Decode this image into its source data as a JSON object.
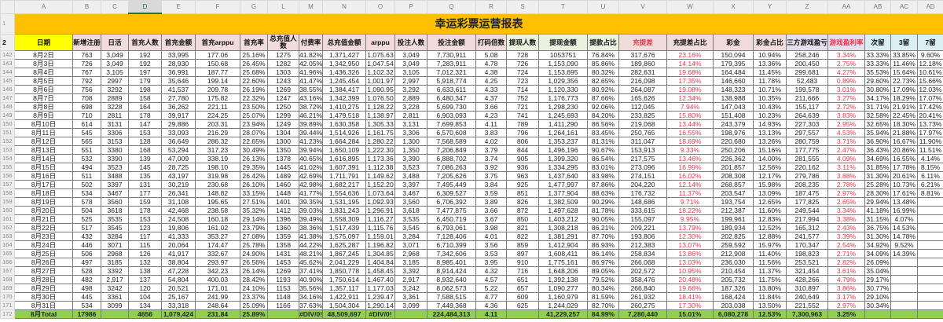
{
  "sheet": {
    "column_letters": [
      "A",
      "B",
      "C",
      "D",
      "E",
      "F",
      "G",
      "L",
      "M",
      "N",
      "O",
      "P",
      "Q",
      "R",
      "S",
      "T",
      "U",
      "V",
      "W",
      "X",
      "Y",
      "Z",
      "AA",
      "AB",
      "AC",
      "AD"
    ],
    "selected_column": "D",
    "title": "幸运彩票运营报表",
    "title_row_number": "1",
    "header_row_number": "2",
    "headers": [
      "日期",
      "新增注册",
      "日活",
      "首充人数",
      "首充金额",
      "首充arppu",
      "首充率",
      "总充值人数",
      "付费率",
      "总充值金额",
      "arppu",
      "投注人数",
      "投注金额",
      "打码倍数",
      "提现人数",
      "提现金额",
      "提款占比",
      "充提差",
      "充提差占比",
      "彩金",
      "彩金占比",
      "三方游戏盈亏",
      "游戏盈利率",
      "次留",
      "3留",
      "7留"
    ],
    "header_styles": [
      "date",
      "pink",
      "pink",
      "pink",
      "pink",
      "pink",
      "pink",
      "pink",
      "pink",
      "pink",
      "pink",
      "pink",
      "pink",
      "pink",
      "green",
      "green",
      "green",
      "pink-red",
      "pink",
      "pink",
      "pink",
      "lav",
      "lav-red",
      "blue",
      "blue",
      "blue"
    ],
    "red_value_columns": [
      18,
      22
    ],
    "colors": {
      "title_bg": "#FFC000",
      "date_header_bg": "#FFFF00",
      "total_row_bg": "#92D050",
      "negative_red": "#e8344a"
    },
    "rows": [
      {
        "n": "142",
        "cells": [
          "8月2日",
          "763",
          "3,049",
          "192",
          "33,995",
          "177.06",
          "25.16%",
          "1275",
          "41.82%",
          "1,371,427",
          "1,075.63",
          "3,049",
          "7,730,911",
          "5.08",
          "728",
          "1053751",
          "76.84%",
          "317,676",
          "23.16%",
          "150,094",
          "10.94%",
          "258,246",
          "3.34%",
          "33.33%",
          "33.85%",
          "9.60%"
        ]
      },
      {
        "n": "143",
        "cells": [
          "8月3日",
          "726",
          "3,049",
          "192",
          "28,930",
          "150.68",
          "26.45%",
          "1282",
          "42.05%",
          "1,342,950",
          "1,047.54",
          "3,049",
          "7,283,911",
          "4.78",
          "726",
          "1,153,090",
          "85.86%",
          "189,860",
          "14.14%",
          "179,395",
          "13.36%",
          "200,450",
          "2.75%",
          "33.33%",
          "11.46%",
          "12.18%"
        ]
      },
      {
        "n": "144",
        "cells": [
          "8月4日",
          "767",
          "3,105",
          "197",
          "36,991",
          "187.77",
          "25.68%",
          "1303",
          "41.96%",
          "1,436,326",
          "1,102.32",
          "3,105",
          "7,012,321",
          "4.38",
          "724",
          "1,153,695",
          "80.32%",
          "282,631",
          "19.68%",
          "164,484",
          "11.45%",
          "299,681",
          "4.27%",
          "35.53%",
          "15.64%",
          "10.61%"
        ]
      },
      {
        "n": "145",
        "cells": [
          "8月5日",
          "792",
          "2997",
          "179",
          "35,646",
          "199.14",
          "22.60%",
          "1243",
          "41.47%",
          "1,245,454",
          "1,001.97",
          "2,997",
          "5,918,774",
          "4.25",
          "723",
          "1,029,356",
          "82.65%",
          "216,098",
          "17.35%",
          "146,660",
          "11.78%",
          "52,483",
          "0.89%",
          "29.60%",
          "22.73%",
          "15.66%"
        ]
      },
      {
        "n": "146",
        "cells": [
          "8月6日",
          "756",
          "3292",
          "198",
          "41,537",
          "209.78",
          "26.19%",
          "1269",
          "38.55%",
          "1,384,417",
          "1,090.95",
          "3,292",
          "6,633,611",
          "4.33",
          "714",
          "1,120,330",
          "80.92%",
          "264,087",
          "19.08%",
          "148,323",
          "10.71%",
          "199,578",
          "3.01%",
          "30.80%",
          "17.09%",
          "12.03%"
        ]
      },
      {
        "n": "147",
        "cells": [
          "8月7日",
          "708",
          "2889",
          "158",
          "27,780",
          "175.82",
          "22.32%",
          "1247",
          "43.16%",
          "1,342,399",
          "1,076.50",
          "2,889",
          "6,480,347",
          "4.37",
          "752",
          "1,176,773",
          "87.66%",
          "165,626",
          "12.34%",
          "138,988",
          "10.35%",
          "211,666",
          "3.27%",
          "34.17%",
          "18.29%",
          "17.07%"
        ]
      },
      {
        "n": "148",
        "cells": [
          "8月8日",
          "698",
          "3228",
          "164",
          "36,262",
          "221.11",
          "23.50%",
          "1250",
          "38.72%",
          "1,410,275",
          "1,128.22",
          "3,228",
          "5,699,730",
          "3.66",
          "721",
          "1,298,230",
          "92.06%",
          "112,045",
          "7.94%",
          "147,043",
          "10.43%",
          "155,117",
          "2.72%",
          "31.71%",
          "21.91%",
          "17.42%"
        ]
      },
      {
        "n": "149",
        "cells": [
          "8月9日",
          "710",
          "2811",
          "178",
          "39,917",
          "224.25",
          "25.07%",
          "1299",
          "46.21%",
          "1,479,518",
          "1,138.97",
          "2,811",
          "6,903,093",
          "4.23",
          "741",
          "1,245,693",
          "84.20%",
          "233,825",
          "15.80%",
          "151,408",
          "10.23%",
          "264,639",
          "3.83%",
          "32.58%",
          "22.45%",
          "20.41%"
        ]
      },
      {
        "n": "150",
        "cells": [
          "8月10日",
          "614",
          "3131",
          "147",
          "29,886",
          "203.31",
          "23.94%",
          "1249",
          "39.89%",
          "1,630,358",
          "1,305.33",
          "3,131",
          "7,699,853",
          "4.11",
          "789",
          "1,411,290",
          "86.56%",
          "219,068",
          "13.44%",
          "243,379",
          "14.93%",
          "227,303",
          "2.95%",
          "32.65%",
          "18.30%",
          "13.73%"
        ]
      },
      {
        "n": "151",
        "cells": [
          "8月11日",
          "545",
          "3306",
          "153",
          "33,093",
          "216.29",
          "28.07%",
          "1304",
          "39.44%",
          "1,514,926",
          "1,161.75",
          "3,306",
          "6,570,608",
          "3.83",
          "796",
          "1,264,161",
          "83.45%",
          "250,765",
          "16.55%",
          "198,976",
          "13.13%",
          "297,557",
          "4.53%",
          "35.94%",
          "21.88%",
          "17.97%"
        ]
      },
      {
        "n": "152",
        "cells": [
          "8月12日",
          "565",
          "3153",
          "128",
          "36,649",
          "286.32",
          "22.65%",
          "1300",
          "41.23%",
          "1,664,284",
          "1,280.22",
          "1,300",
          "7,568,589",
          "4.02",
          "806",
          "1,353,237",
          "81.31%",
          "311,047",
          "18.69%",
          "220,680",
          "13.26%",
          "280,759",
          "3.71%",
          "36.90%",
          "16.67%",
          "11.90%"
        ]
      },
      {
        "n": "153",
        "cells": [
          "8月13日",
          "551",
          "3380",
          "168",
          "53,294",
          "317.23",
          "30.49%",
          "1350",
          "39.94%",
          "1,650,109",
          "1,222.30",
          "1,350",
          "7,206,849",
          "3.79",
          "844",
          "1,496,196",
          "90.67%",
          "153,913",
          "9.33%",
          "250,206",
          "15.16%",
          "177,775",
          "2.47%",
          "36.43%",
          "20.86%",
          "11.51%"
        ]
      },
      {
        "n": "154",
        "cells": [
          "8月14日",
          "532",
          "3390",
          "139",
          "47,009",
          "338.19",
          "26.13%",
          "1378",
          "40.65%",
          "1,616,895",
          "1,173.36",
          "3,390",
          "6,888,702",
          "3.74",
          "905",
          "1,399,320",
          "86.54%",
          "217,575",
          "13.46%",
          "226,362",
          "14.00%",
          "281,555",
          "4.09%",
          "34.69%",
          "16.55%",
          "4.14%"
        ]
      },
      {
        "n": "155",
        "cells": [
          "8月15日",
          "494",
          "3523",
          "145",
          "28,725",
          "198.10",
          "29.35%",
          "1445",
          "41.02%",
          "1,607,391",
          "1,112.38",
          "3,523",
          "7,086,263",
          "3.92",
          "936",
          "1,334,295",
          "83.01%",
          "273,096",
          "16.99%",
          "201,857",
          "12.56%",
          "220,162",
          "3.11%",
          "31.85%",
          "17.78%",
          "8.15%"
        ]
      },
      {
        "n": "156",
        "cells": [
          "8月16日",
          "511",
          "3488",
          "135",
          "43,197",
          "319.98",
          "26.42%",
          "1489",
          "42.69%",
          "1,711,791",
          "1,149.62",
          "3,488",
          "7,205,626",
          "3.75",
          "963",
          "1,437,640",
          "83.98%",
          "274,151",
          "16.02%",
          "208,308",
          "12.17%",
          "279,786",
          "3.88%",
          "31.30%",
          "20.61%",
          "6.11%"
        ]
      },
      {
        "n": "157",
        "cells": [
          "8月17日",
          "502",
          "3397",
          "131",
          "30,219",
          "230.68",
          "26.10%",
          "1460",
          "42.98%",
          "1,682,217",
          "1,152.20",
          "3,397",
          "7,495,449",
          "3.84",
          "925",
          "1,477,997",
          "87.86%",
          "204,220",
          "12.14%",
          "268,857",
          "15.98%",
          "208,235",
          "2.78%",
          "25.28%",
          "10.73%",
          "6.21%"
        ]
      },
      {
        "n": "158",
        "cells": [
          "8月18日",
          "534",
          "3467",
          "177",
          "26,341",
          "148.82",
          "33.15%",
          "1448",
          "41.77%",
          "1,554,636",
          "1,073.64",
          "3,467",
          "6,309,527",
          "3.59",
          "851",
          "1,377,904",
          "88.63%",
          "176,732",
          "11.37%",
          "203,547",
          "13.09%",
          "187,475",
          "2.97%",
          "28.30%",
          "17.61%",
          "8.81%"
        ]
      },
      {
        "n": "159",
        "cells": [
          "8月19日",
          "578",
          "3560",
          "159",
          "31,108",
          "195.65",
          "27.51%",
          "1401",
          "39.35%",
          "1,531,195",
          "1,092.93",
          "3,560",
          "6,706,392",
          "3.89",
          "826",
          "1,382,509",
          "90.29%",
          "148,686",
          "9.71%",
          "193,754",
          "12.65%",
          "177,825",
          "2.65%",
          "29.94%",
          "13.48%",
          ""
        ]
      },
      {
        "n": "160",
        "cells": [
          "8月20日",
          "504",
          "3618",
          "178",
          "42,468",
          "238.58",
          "35.32%",
          "1412",
          "39.03%",
          "1,831,243",
          "1,296.91",
          "3,618",
          "7,477,875",
          "3.66",
          "872",
          "1,497,628",
          "81.78%",
          "333,615",
          "18.22%",
          "212,387",
          "11.60%",
          "249,544",
          "3.34%",
          "41.18%",
          "16.99%",
          ""
        ]
      },
      {
        "n": "161",
        "cells": [
          "8月21日",
          "525",
          "3535",
          "153",
          "24,508",
          "160.18",
          "29.14%",
          "1396",
          "39.49%",
          "1,558,309",
          "1,116.27",
          "3,535",
          "6,450,719",
          "3.67",
          "850",
          "1,403,212",
          "90.05%",
          "155,097",
          "9.95%",
          "199,961",
          "12.83%",
          "217,994",
          "3.38%",
          "31.15%",
          "4.07%",
          ""
        ]
      },
      {
        "n": "162",
        "cells": [
          "8月22日",
          "517",
          "3545",
          "123",
          "19,806",
          "161.02",
          "23.79%",
          "1360",
          "38.36%",
          "1,517,439",
          "1,115.76",
          "3,545",
          "6,793,061",
          "3.98",
          "821",
          "1,308,218",
          "86.21%",
          "209,221",
          "13.79%",
          "189,934",
          "12.52%",
          "165,312",
          "2.43%",
          "36.75%",
          "14.53%",
          ""
        ]
      },
      {
        "n": "163",
        "cells": [
          "8月23日",
          "432",
          "3284",
          "117",
          "41,333",
          "353.27",
          "27.08%",
          "1359",
          "41.38%",
          "1,575,097",
          "1,159.01",
          "3,284",
          "7,128,406",
          "4.01",
          "822",
          "1,381,291",
          "87.70%",
          "193,806",
          "12.30%",
          "202,825",
          "12.88%",
          "241,577",
          "3.39%",
          "31.30%",
          "14.78%",
          ""
        ]
      },
      {
        "n": "164",
        "cells": [
          "8月24日",
          "446",
          "3071",
          "115",
          "20,064",
          "174.47",
          "25.78%",
          "1358",
          "44.22%",
          "1,625,287",
          "1,196.82",
          "3,071",
          "6,710,399",
          "3.56",
          "859",
          "1,412,904",
          "86.93%",
          "212,383",
          "13.07%",
          "259,592",
          "15.97%",
          "170,347",
          "2.54%",
          "34.92%",
          "9.52%",
          ""
        ]
      },
      {
        "n": "165",
        "cells": [
          "8月25日",
          "506",
          "2968",
          "126",
          "41,917",
          "332.67",
          "24.90%",
          "1431",
          "48.21%",
          "1,867,245",
          "1,304.85",
          "2,968",
          "7,342,606",
          "3.53",
          "897",
          "1,608,411",
          "86.14%",
          "258,834",
          "13.86%",
          "212,908",
          "11.40%",
          "198,823",
          "2.71%",
          "34.09%",
          "14.39%",
          ""
        ]
      },
      {
        "n": "166",
        "cells": [
          "8月26日",
          "497",
          "3185",
          "132",
          "38,804",
          "293.97",
          "26.56%",
          "1453",
          "45.62%",
          "2,041,229",
          "1,404.84",
          "3,185",
          "8,985,401",
          "3.95",
          "910",
          "1,775,161",
          "86.97%",
          "266,068",
          "13.03%",
          "236,030",
          "11.56%",
          "253,521",
          "2.82%",
          "26.09%",
          "",
          ""
        ]
      },
      {
        "n": "167",
        "cells": [
          "8月27日",
          "528",
          "3392",
          "138",
          "47,228",
          "342.23",
          "26.14%",
          "1269",
          "37.41%",
          "1,850,778",
          "1,458.45",
          "3,392",
          "8,914,424",
          "4.32",
          "716",
          "1,648,206",
          "89.05%",
          "202,572",
          "10.95%",
          "210,454",
          "11.37%",
          "321,454",
          "3.61%",
          "35.04%",
          "",
          ""
        ]
      },
      {
        "n": "168",
        "cells": [
          "8月28日",
          "482",
          "2,917",
          "137",
          "54,804",
          "400.03",
          "28.42%",
          "1193",
          "40.90%",
          "1,750,614",
          "1,467.40",
          "2,917",
          "8,932,640",
          "4.57",
          "651",
          "1,392,138",
          "79.52%",
          "358,476",
          "20.48%",
          "205,732",
          "11.75%",
          "428,266",
          "4.79%",
          "29.17%",
          "",
          ""
        ]
      },
      {
        "n": "169",
        "cells": [
          "8月29日",
          "498",
          "3242",
          "120",
          "20,521",
          "171.01",
          "24.10%",
          "1153",
          "35.56%",
          "1,357,117",
          "1,177.03",
          "3,242",
          "8,062,573",
          "5.22",
          "657",
          "1,090,277",
          "80.34%",
          "266,840",
          "19.66%",
          "187,326",
          "13.80%",
          "310,897",
          "3.86%",
          "30.77%",
          "",
          ""
        ]
      },
      {
        "n": "170",
        "cells": [
          "8月30日",
          "445",
          "3361",
          "104",
          "25,167",
          "241.99",
          "23.37%",
          "1148",
          "34.16%",
          "1,422,911",
          "1,239.47",
          "3,361",
          "7,588,515",
          "4.77",
          "609",
          "1,160,979",
          "81.59%",
          "261,932",
          "18.41%",
          "168,424",
          "11.84%",
          "240,649",
          "3.17%",
          "29.10%",
          "",
          ""
        ]
      },
      {
        "n": "171",
        "cells": [
          "8月31日",
          "534",
          "3099",
          "134",
          "33,318",
          "248.64",
          "25.09%",
          "1166",
          "37.63%",
          "1,504,304",
          "1,290.14",
          "3,099",
          "7,449,368",
          "4.36",
          "625",
          "1,244,029",
          "82.70%",
          "260,275",
          "17.30%",
          "203,038",
          "13.50%",
          "221,552",
          "2.97%",
          "30.34%",
          "",
          ""
        ]
      }
    ],
    "total_row": {
      "n": "172",
      "cells": [
        "8月Total",
        "17986",
        "",
        "4656",
        "1,079,424",
        "231.84",
        "25.89%",
        "",
        "#DIV/0!",
        "48,509,697",
        "#DIV/0!",
        "",
        "224,484,313",
        "4.11",
        "",
        "41,229,257",
        "84.99%",
        "7,280,440",
        "15.01%",
        "6,080,278",
        "12.53%",
        "7,300,963",
        "3.25%",
        "",
        "",
        ""
      ]
    }
  }
}
